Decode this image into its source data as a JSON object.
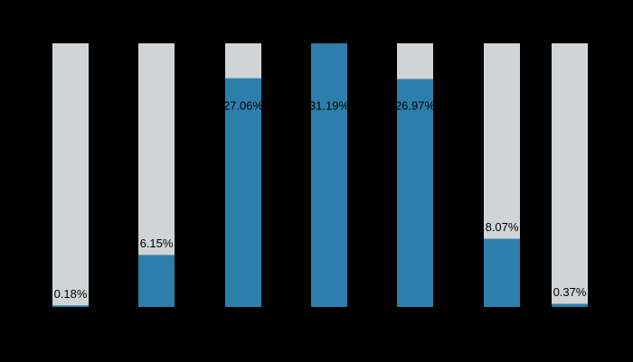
{
  "chart_data": {
    "type": "bar",
    "values": [
      0.18,
      6.15,
      27.06,
      31.19,
      26.97,
      8.07,
      0.37
    ],
    "value_labels": [
      "0.18%",
      "6.15%",
      "27.06%",
      "31.19%",
      "26.97%",
      "8.07%",
      "0.37%"
    ],
    "color": "#2d7fab",
    "track_color": "#d0d4d6",
    "ylim": [
      0,
      31.19
    ]
  }
}
